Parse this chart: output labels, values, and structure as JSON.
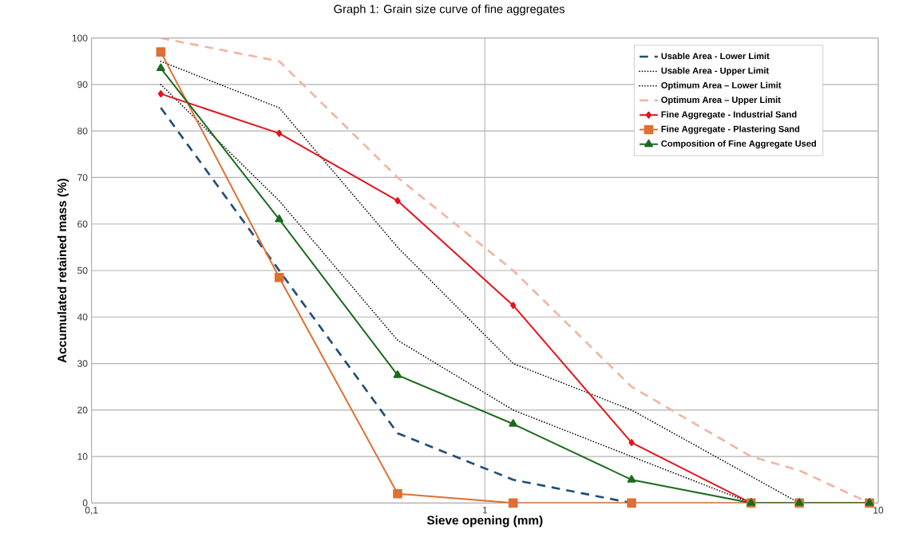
{
  "chart_data": {
    "type": "line",
    "title": "Graph 1: Grain size curve of fine aggregates",
    "xlabel": "Sieve opening (mm)",
    "ylabel": "Accumulated retained mass (%)",
    "log": "x",
    "grid": true,
    "legend": "top right",
    "xlim": [
      0.1,
      10
    ],
    "xticks": [
      {
        "value": 0.1,
        "label": "0,1"
      },
      1,
      10
    ],
    "ylim": [
      0,
      100
    ],
    "yticks": [
      0,
      10,
      20,
      30,
      40,
      50,
      60,
      70,
      80,
      90,
      100
    ],
    "series": [
      {
        "name": "Usable Area - Lower Limit",
        "color": "#1f4e79",
        "line_style": "dashed",
        "marker": "none",
        "x": [
          0.15,
          0.3,
          0.6,
          1.18,
          2.36
        ],
        "values": [
          85,
          50,
          15,
          5,
          0
        ]
      },
      {
        "name": "Usable Area - Upper Limit",
        "color": "#000000",
        "line_style": "dotted",
        "marker": "none",
        "x": [
          0.15,
          0.3,
          0.6,
          1.18,
          2.36,
          6.3
        ],
        "values": [
          95,
          85,
          55,
          30,
          20,
          0
        ]
      },
      {
        "name": "Optimum Area – Lower Limit",
        "color": "#000000",
        "line_style": "dotted",
        "marker": "none",
        "x": [
          0.15,
          0.3,
          0.6,
          1.18,
          2.36,
          4.75
        ],
        "values": [
          90,
          65,
          35,
          20,
          10,
          0
        ]
      },
      {
        "name": "Optimum Area – Upper Limit",
        "color": "#f2b4a2",
        "line_style": "dashed",
        "marker": "none",
        "x": [
          0.15,
          0.3,
          0.6,
          1.18,
          2.36,
          4.75,
          6.3,
          9.5
        ],
        "values": [
          100,
          95,
          70,
          50,
          25,
          10,
          7,
          0
        ]
      },
      {
        "name": "Fine Aggregate - Industrial Sand",
        "color": "#e3141c",
        "line_style": "solid",
        "marker": "diamond",
        "x": [
          0.15,
          0.3,
          0.6,
          1.18,
          2.36,
          4.75
        ],
        "values": [
          88,
          79.5,
          65,
          42.5,
          13,
          0
        ]
      },
      {
        "name": "Fine Aggregate - Plastering Sand",
        "color": "#de7032",
        "line_style": "solid",
        "marker": "square",
        "x": [
          0.15,
          0.3,
          0.6,
          1.18,
          2.36,
          4.75,
          6.3,
          9.5
        ],
        "values": [
          97,
          48.5,
          2,
          0,
          0,
          0,
          0,
          0
        ]
      },
      {
        "name": "Composition of Fine Aggregate Used",
        "color": "#1b6b1e",
        "line_style": "solid",
        "marker": "triangle",
        "x": [
          0.15,
          0.3,
          0.6,
          1.18,
          2.36,
          4.75,
          6.3,
          9.5
        ],
        "values": [
          93.5,
          61,
          27.5,
          17,
          5,
          0,
          0,
          0
        ]
      }
    ]
  }
}
